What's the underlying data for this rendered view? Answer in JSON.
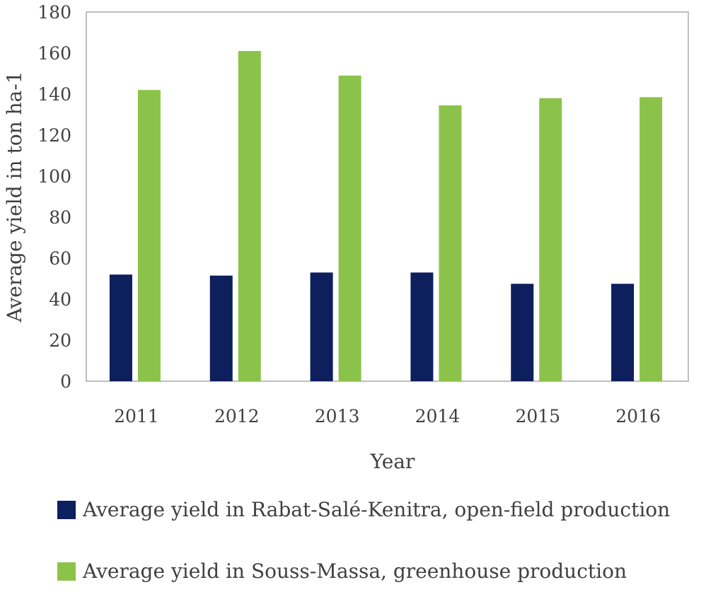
{
  "chart_data": {
    "type": "bar",
    "title": "",
    "xlabel": "Year",
    "ylabel": "Average yield in ton ha-1",
    "ylim": [
      0,
      180
    ],
    "y_ticks": [
      "0",
      "20",
      "40",
      "60",
      "80",
      "100",
      "120",
      "140",
      "160",
      "180"
    ],
    "categories": [
      "2011",
      "2012",
      "2013",
      "2014",
      "2015",
      "2016"
    ],
    "series": [
      {
        "name": "Average yield in Rabat-Salé-Kenitra, open-field production",
        "color": "#0d1f5c",
        "values": [
          52,
          51.5,
          53,
          53,
          47.5,
          47.5
        ]
      },
      {
        "name": "Average yield in Souss-Massa, greenhouse production",
        "color": "#8bc34a",
        "values": [
          142,
          161,
          149,
          134.5,
          138,
          138.5
        ]
      }
    ],
    "grid": false,
    "legend_position": "bottom"
  }
}
